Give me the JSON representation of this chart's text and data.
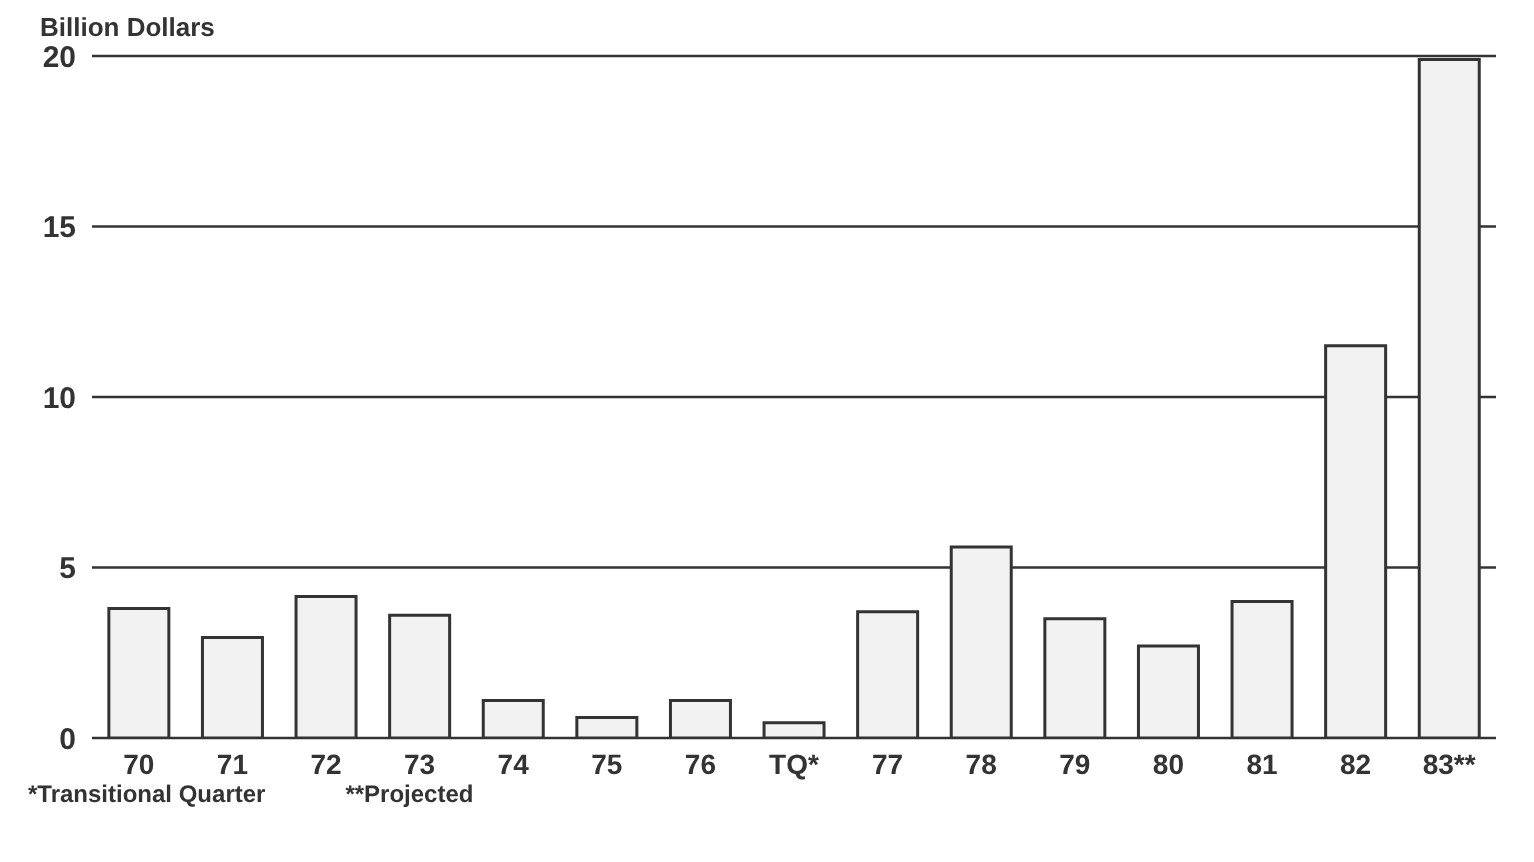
{
  "chart_data": {
    "type": "bar",
    "ylabel": "Billion Dollars",
    "categories": [
      "70",
      "71",
      "72",
      "73",
      "74",
      "75",
      "76",
      "TQ*",
      "77",
      "78",
      "79",
      "80",
      "81",
      "82",
      "83**"
    ],
    "values": [
      3.8,
      2.95,
      4.15,
      3.6,
      1.1,
      0.6,
      1.1,
      0.45,
      3.7,
      5.6,
      3.5,
      2.7,
      4.0,
      11.5,
      19.9
    ],
    "color": "#f2f2f2",
    "ylim": [
      0,
      20
    ],
    "yticks": [
      0,
      5,
      10,
      15,
      20
    ],
    "grid": "y",
    "annotations": [
      "*Transitional Quarter",
      "**Projected"
    ]
  }
}
